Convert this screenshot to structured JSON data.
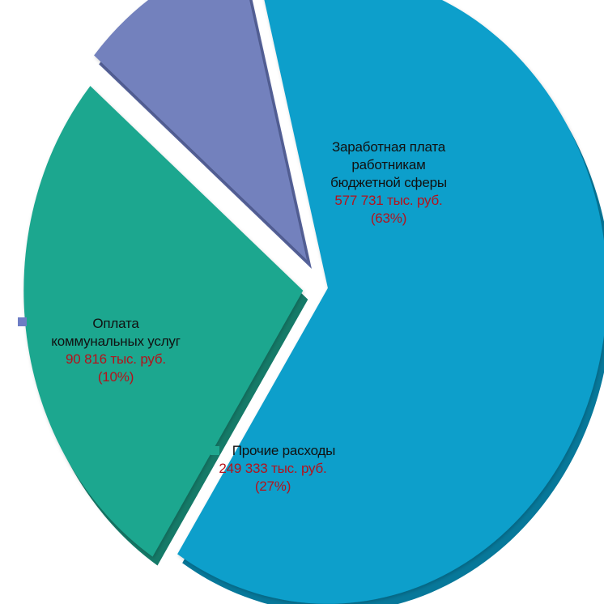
{
  "chart_data": {
    "type": "pie",
    "exploded": true,
    "slices": [
      {
        "name_lines": [
          "Заработная плата",
          "работникам",
          "бюджетной сферы"
        ],
        "value_label": "577 731 тыс. руб.",
        "percent_label": "(63%)",
        "value": 577731,
        "percent": 63,
        "color": "#0a9fcb",
        "side_color": "#07789a",
        "legend_marker": false
      },
      {
        "name_lines": [
          "Прочие расходы"
        ],
        "value_label": "249 333 тыс. руб.",
        "percent_label": "(27%)",
        "value": 249333,
        "percent": 27,
        "color": "#1fa78f",
        "side_color": "#157a68",
        "legend_marker": true
      },
      {
        "name_lines": [
          "Оплата",
          "коммунальных услуг"
        ],
        "value_label": "90 816  тыс. руб.",
        "percent_label": "(10%)",
        "value": 90816,
        "percent": 10,
        "color": "#7381bd",
        "side_color": "#56639b",
        "legend_marker": true
      }
    ]
  }
}
